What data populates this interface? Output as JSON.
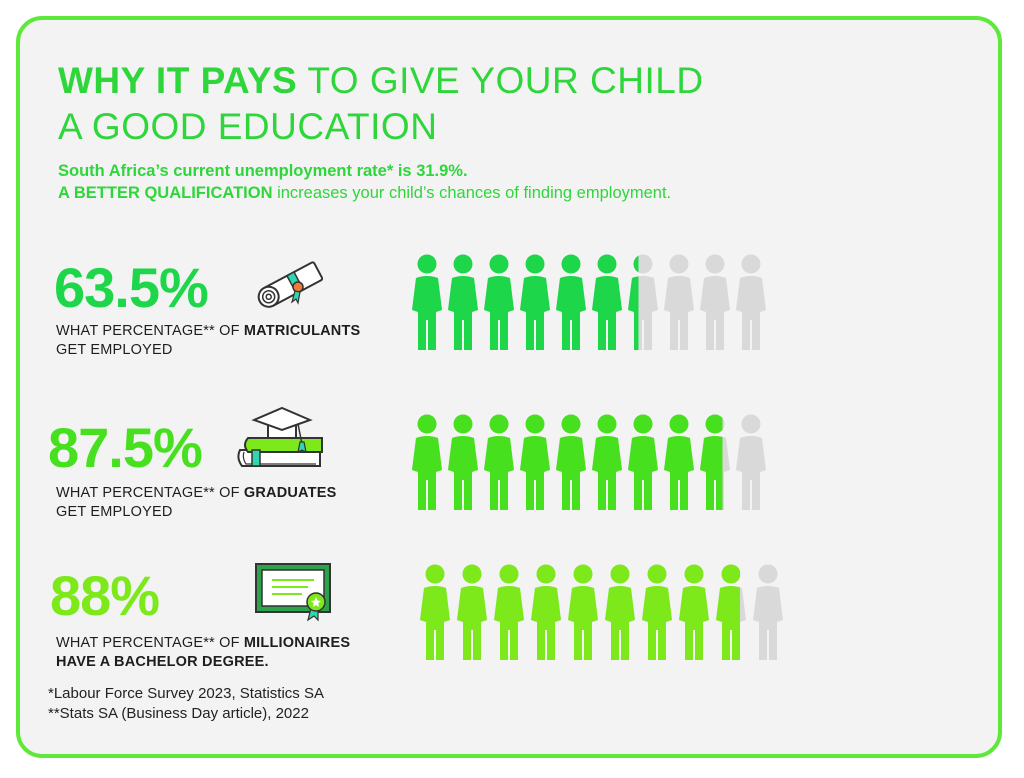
{
  "colors": {
    "border": "#5ee83a",
    "title": "#2fd63b",
    "row1": "#1ed64a",
    "row2": "#47e01f",
    "row3": "#7de81a",
    "inactive": "#d9d9d9"
  },
  "title": {
    "bold": "WHY IT PAYS",
    "rest": " TO GIVE YOUR CHILD",
    "line2": "A GOOD EDUCATION"
  },
  "subtitle": {
    "line1": "South Africa’s current unemployment rate* is 31.9%.",
    "line2_bold": "A BETTER QUALIFICATION",
    "line2_rest": " increases your child’s chances of finding employment."
  },
  "chart_data": {
    "type": "pictograph",
    "people_per_row": 10,
    "rows": [
      {
        "value_label": "63.5%",
        "value": 63.5,
        "desc_prefix": "WHAT PERCENTAGE** OF ",
        "desc_bold": "MATRICULANTS",
        "desc_line2": "GET EMPLOYED",
        "desc_line2_bold": false,
        "icon": "diploma-scroll-icon"
      },
      {
        "value_label": "87.5%",
        "value": 87.5,
        "desc_prefix": "WHAT PERCENTAGE** OF ",
        "desc_bold": "GRADUATES",
        "desc_line2": "GET EMPLOYED",
        "desc_line2_bold": false,
        "icon": "graduation-cap-books-icon"
      },
      {
        "value_label": "88%",
        "value": 88,
        "desc_prefix": "WHAT PERCENTAGE** OF ",
        "desc_bold": "MILLIONAIRES",
        "desc_line2": "HAVE A BACHELOR DEGREE.",
        "desc_line2_bold": true,
        "icon": "certificate-icon"
      }
    ]
  },
  "footnotes": {
    "line1": "*Labour Force Survey 2023, Statistics SA",
    "line2": "**Stats SA (Business Day article), 2022"
  }
}
